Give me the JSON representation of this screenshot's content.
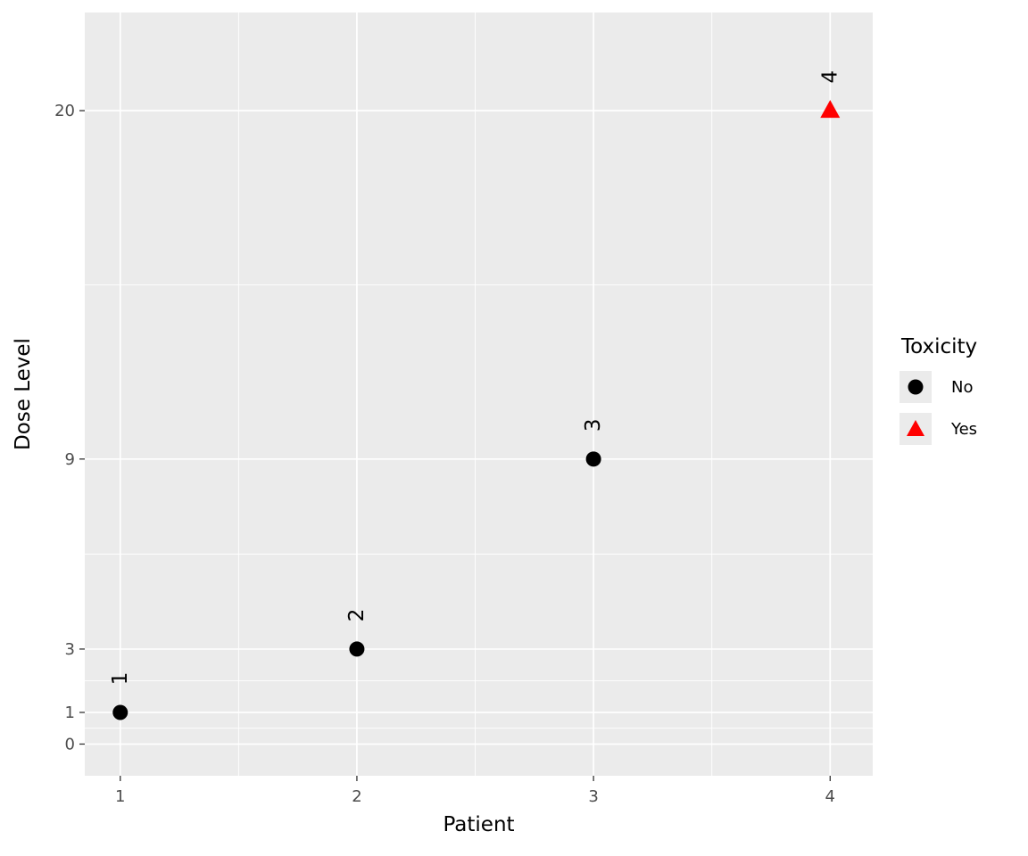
{
  "chart_data": {
    "type": "scatter",
    "title": "",
    "xlabel": "Patient",
    "ylabel": "Dose Level",
    "x_ticks": [
      1,
      2,
      3,
      4
    ],
    "y_ticks": [
      0,
      1,
      3,
      9,
      20
    ],
    "x_minor": [
      1.5,
      2.5,
      3.5
    ],
    "y_minor": [
      0.5,
      2,
      6,
      14.5
    ],
    "x_domain": [
      0.85,
      4.18
    ],
    "y_domain": [
      -1,
      23.1
    ],
    "grid": "on",
    "points": [
      {
        "patient": 1,
        "dose": 1,
        "toxicity": "No",
        "label": "1",
        "shape": "circle",
        "color": "#000000"
      },
      {
        "patient": 2,
        "dose": 3,
        "toxicity": "No",
        "label": "2",
        "shape": "circle",
        "color": "#000000"
      },
      {
        "patient": 3,
        "dose": 9,
        "toxicity": "No",
        "label": "3",
        "shape": "circle",
        "color": "#000000"
      },
      {
        "patient": 4,
        "dose": 20,
        "toxicity": "Yes",
        "label": "4",
        "shape": "triangle",
        "color": "#FF0000"
      }
    ],
    "legend": {
      "title": "Toxicity",
      "position": "right",
      "entries": [
        {
          "label": "No",
          "shape": "circle",
          "color": "#000000"
        },
        {
          "label": "Yes",
          "shape": "triangle",
          "color": "#FF0000"
        }
      ]
    },
    "colors": {
      "panel_bg": "#EBEBEB",
      "grid": "#FFFFFF",
      "tick_text": "#4D4D4D",
      "tick_mark": "#333333",
      "axis_title": "#000000",
      "legend_key_bg": "#EBEBEB",
      "point_label": "#000000"
    }
  }
}
